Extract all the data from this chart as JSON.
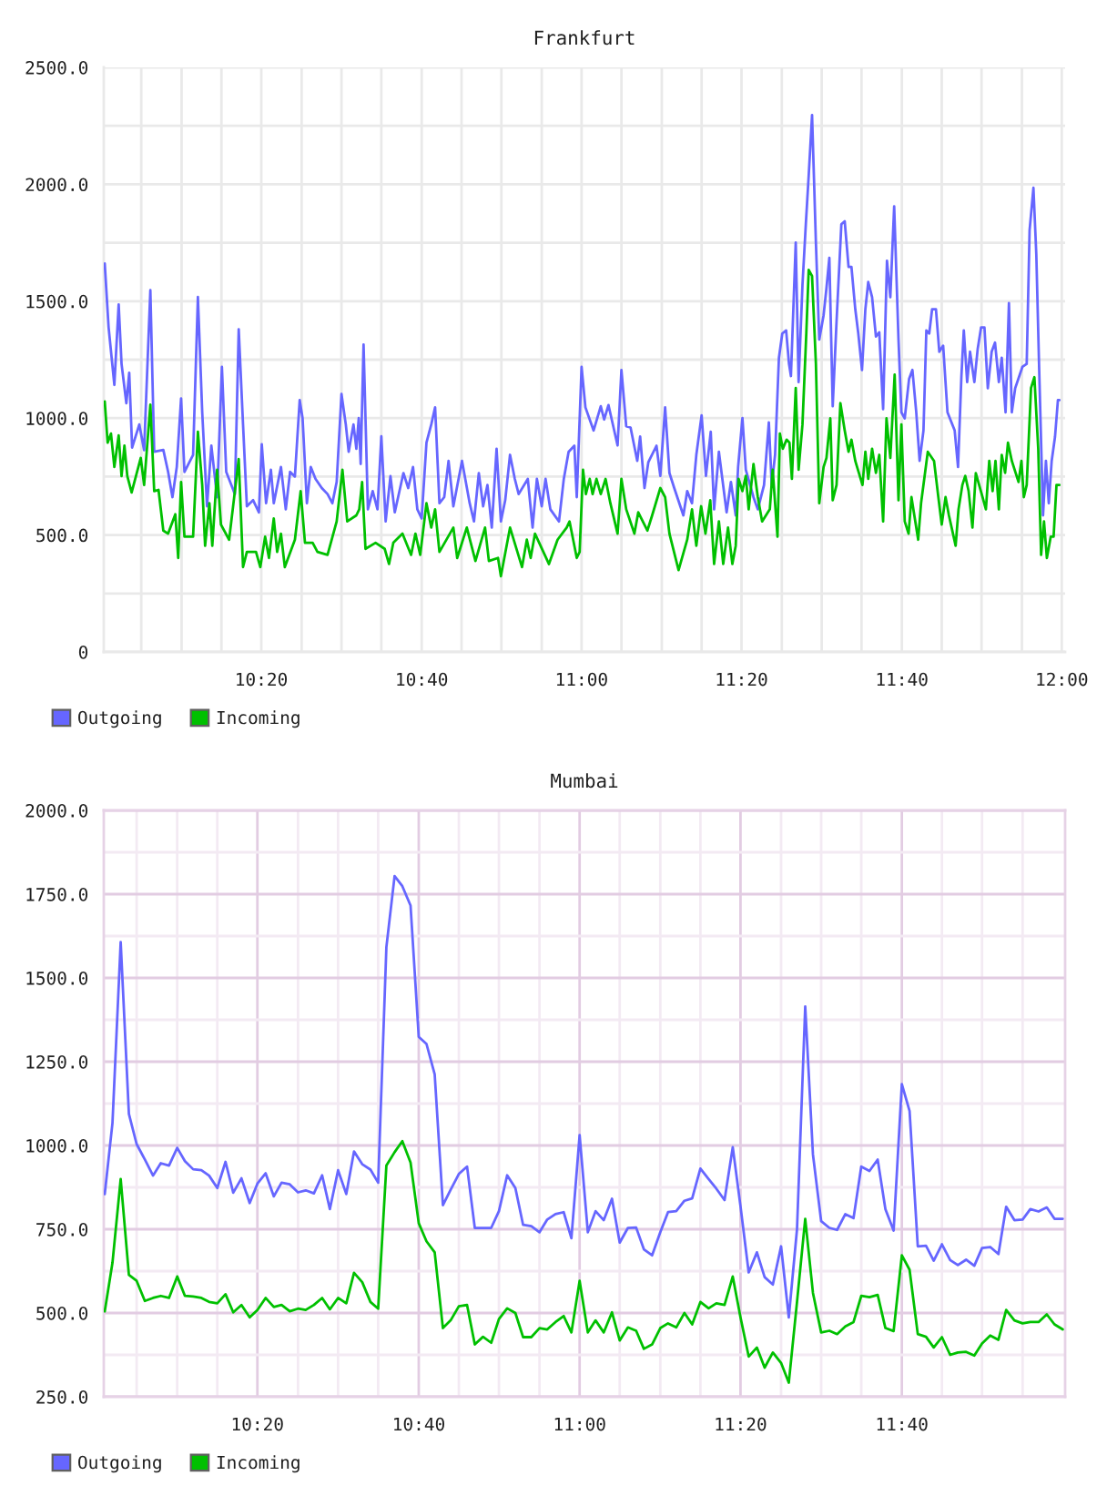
{
  "chart_data": [
    {
      "type": "line",
      "title": "Frankfurt",
      "xlim": [
        10.005,
        12.007
      ],
      "ylim": [
        0,
        2500
      ],
      "xticks": [
        {
          "value": 10.083,
          "label": null
        },
        {
          "value": 10.167,
          "label": null
        },
        {
          "value": 10.25,
          "label": null
        },
        {
          "value": 10.333,
          "label": "10:20"
        },
        {
          "value": 10.417,
          "label": null
        },
        {
          "value": 10.5,
          "label": null
        },
        {
          "value": 10.583,
          "label": null
        },
        {
          "value": 10.667,
          "label": "10:40"
        },
        {
          "value": 10.75,
          "label": null
        },
        {
          "value": 10.833,
          "label": null
        },
        {
          "value": 10.917,
          "label": null
        },
        {
          "value": 11.0,
          "label": "11:00"
        },
        {
          "value": 11.083,
          "label": null
        },
        {
          "value": 11.167,
          "label": null
        },
        {
          "value": 11.25,
          "label": null
        },
        {
          "value": 11.333,
          "label": "11:20"
        },
        {
          "value": 11.417,
          "label": null
        },
        {
          "value": 11.5,
          "label": null
        },
        {
          "value": 11.583,
          "label": null
        },
        {
          "value": 11.667,
          "label": "11:40"
        },
        {
          "value": 11.75,
          "label": null
        },
        {
          "value": 11.833,
          "label": null
        },
        {
          "value": 11.917,
          "label": null
        },
        {
          "value": 12.0,
          "label": "12:00"
        }
      ],
      "yticks": [
        0,
        {
          "value": 250,
          "label": null
        },
        {
          "value": 500,
          "label": "500.0"
        },
        {
          "value": 750,
          "label": null
        },
        {
          "value": 1000,
          "label": "1000.0"
        },
        {
          "value": 1250,
          "label": null
        },
        {
          "value": 1500,
          "label": "1500.0"
        },
        {
          "value": 1750,
          "label": null
        },
        {
          "value": 2000,
          "label": "2000.0"
        },
        {
          "value": 2250,
          "label": null
        },
        {
          "value": 2500,
          "label": "2500.0"
        }
      ],
      "grid": true,
      "legend": "bottom left",
      "series": [
        {
          "name": "Outgoing",
          "color": "#6666ff",
          "x": [
            10.007,
            10.015,
            10.027,
            10.036,
            10.042,
            10.052,
            10.058,
            10.064,
            10.079,
            10.089,
            10.102,
            10.11,
            10.129,
            10.139,
            10.148,
            10.157,
            10.166,
            10.173,
            10.191,
            10.201,
            10.21,
            10.22,
            10.229,
            10.241,
            10.251,
            10.26,
            10.278,
            10.286,
            10.295,
            10.303,
            10.316,
            10.328,
            10.334,
            10.343,
            10.353,
            10.359,
            10.374,
            10.384,
            10.393,
            10.403,
            10.413,
            10.419,
            10.428,
            10.436,
            10.446,
            10.459,
            10.471,
            10.481,
            10.49,
            10.5,
            10.509,
            10.515,
            10.525,
            10.531,
            10.536,
            10.54,
            10.546,
            10.555,
            10.565,
            10.575,
            10.583,
            10.592,
            10.602,
            10.611,
            10.629,
            10.639,
            10.649,
            10.658,
            10.667,
            10.677,
            10.687,
            10.695,
            10.704,
            10.714,
            10.723,
            10.733,
            10.751,
            10.767,
            10.776,
            10.786,
            10.795,
            10.804,
            10.813,
            10.823,
            10.832,
            10.841,
            10.851,
            10.861,
            10.869,
            10.888,
            10.898,
            10.907,
            10.917,
            10.925,
            10.935,
            10.953,
            10.963,
            10.973,
            10.985,
            10.99,
            11.0,
            11.008,
            11.025,
            11.04,
            11.047,
            11.056,
            11.075,
            11.083,
            11.093,
            11.102,
            11.116,
            11.122,
            11.131,
            11.139,
            11.156,
            11.164,
            11.174,
            11.183,
            11.193,
            11.212,
            11.22,
            11.23,
            11.239,
            11.25,
            11.259,
            11.269,
            11.276,
            11.286,
            11.302,
            11.311,
            11.321,
            11.326,
            11.335,
            11.342,
            11.358,
            11.367,
            11.38,
            11.39,
            11.396,
            11.403,
            11.411,
            11.418,
            11.426,
            11.432,
            11.436,
            11.446,
            11.452,
            11.46,
            11.467,
            11.473,
            11.48,
            11.488,
            11.495,
            11.504,
            11.51,
            11.516,
            11.523,
            11.531,
            11.541,
            11.548,
            11.556,
            11.562,
            11.57,
            11.576,
            11.584,
            11.591,
            11.597,
            11.605,
            11.613,
            11.62,
            11.628,
            11.636,
            11.643,
            11.651,
            11.66,
            11.666,
            11.673,
            11.682,
            11.689,
            11.697,
            11.704,
            11.712,
            11.718,
            11.724,
            11.73,
            11.738,
            11.745,
            11.753,
            11.762,
            11.777,
            11.784,
            11.791,
            11.796,
            11.803,
            11.809,
            11.818,
            11.825,
            11.832,
            11.839,
            11.846,
            11.854,
            11.861,
            11.869,
            11.875,
            11.883,
            11.89,
            11.896,
            11.903,
            11.918,
            11.927,
            11.933,
            11.941,
            11.947,
            11.953,
            11.961,
            11.967,
            11.973,
            11.979,
            11.986,
            11.992,
            11.995
          ],
          "values": [
            1661,
            1389,
            1142,
            1486,
            1232,
            1064,
            1194,
            874,
            973,
            863,
            1547,
            856,
            864,
            770,
            662,
            791,
            1084,
            770,
            843,
            1518,
            1025,
            623,
            882,
            662,
            1219,
            770,
            675,
            1380,
            973,
            623,
            649,
            597,
            888,
            636,
            779,
            636,
            791,
            610,
            770,
            750,
            1077,
            1000,
            636,
            791,
            740,
            701,
            675,
            636,
            727,
            1103,
            973,
            856,
            973,
            869,
            1000,
            804,
            1315,
            610,
            688,
            610,
            922,
            558,
            752,
            597,
            765,
            701,
            791,
            610,
            571,
            895,
            973,
            1046,
            636,
            662,
            817,
            623,
            817,
            636,
            558,
            765,
            623,
            714,
            532,
            869,
            558,
            649,
            843,
            740,
            675,
            740,
            532,
            740,
            623,
            740,
            610,
            558,
            740,
            856,
            882,
            662,
            1219,
            1046,
            947,
            1051,
            994,
            1056,
            883,
            1206,
            965,
            960,
            817,
            921,
            701,
            811,
            882,
            753,
            1046,
            765,
            701,
            584,
            688,
            636,
            843,
            1012,
            753,
            942,
            610,
            856,
            597,
            727,
            584,
            791,
            1000,
            779,
            662,
            610,
            714,
            982,
            714,
            843,
            1258,
            1362,
            1375,
            1232,
            1180,
            1751,
            1154,
            1569,
            1829,
            2037,
            2296,
            1751,
            1336,
            1440,
            1556,
            1686,
            1051,
            1414,
            1829,
            1842,
            1647,
            1647,
            1466,
            1367,
            1206,
            1466,
            1582,
            1517,
            1349,
            1367,
            1038,
            1673,
            1517,
            1906,
            1336,
            1025,
            999,
            1167,
            1206,
            1025,
            817,
            947,
            1375,
            1362,
            1466,
            1466,
            1284,
            1310,
            1025,
            947,
            791,
            1180,
            1375,
            1154,
            1284,
            1154,
            1297,
            1388,
            1388,
            1128,
            1284,
            1323,
            1154,
            1258,
            1025,
            1492,
            1025,
            1128,
            1219,
            1232,
            1803,
            1985,
            1700,
            1206,
            584,
            817,
            636,
            817,
            921,
            1077,
            1077
          ]
        },
        {
          "name": "Incoming",
          "color": "#00c000",
          "x": [
            10.007,
            10.013,
            10.02,
            10.027,
            10.036,
            10.042,
            10.048,
            10.054,
            10.063,
            10.082,
            10.089,
            10.102,
            10.11,
            10.119,
            10.129,
            10.139,
            10.154,
            10.16,
            10.166,
            10.173,
            10.191,
            10.201,
            10.21,
            10.216,
            10.225,
            10.231,
            10.241,
            10.249,
            10.266,
            10.286,
            10.295,
            10.303,
            10.322,
            10.331,
            10.341,
            10.349,
            10.359,
            10.366,
            10.374,
            10.382,
            10.403,
            10.415,
            10.424,
            10.44,
            10.45,
            10.471,
            10.49,
            10.502,
            10.512,
            10.531,
            10.537,
            10.543,
            10.55,
            10.571,
            10.59,
            10.599,
            10.608,
            10.627,
            10.645,
            10.654,
            10.664,
            10.677,
            10.687,
            10.695,
            10.704,
            10.733,
            10.741,
            10.761,
            10.779,
            10.799,
            10.807,
            10.826,
            10.832,
            10.851,
            10.876,
            10.886,
            10.894,
            10.903,
            10.932,
            10.95,
            10.969,
            10.975,
            10.99,
            10.996,
            11.003,
            11.009,
            11.017,
            11.023,
            11.031,
            11.04,
            11.05,
            11.06,
            11.075,
            11.083,
            11.093,
            11.11,
            11.118,
            11.137,
            11.147,
            11.164,
            11.174,
            11.183,
            11.202,
            11.22,
            11.23,
            11.239,
            11.249,
            11.258,
            11.268,
            11.276,
            11.286,
            11.295,
            11.305,
            11.314,
            11.321,
            11.327,
            11.335,
            11.342,
            11.348,
            11.358,
            11.367,
            11.376,
            11.392,
            11.398,
            11.408,
            11.413,
            11.419,
            11.427,
            11.433,
            11.438,
            11.446,
            11.452,
            11.46,
            11.468,
            11.473,
            11.48,
            11.488,
            11.495,
            11.504,
            11.51,
            11.518,
            11.523,
            11.531,
            11.539,
            11.548,
            11.556,
            11.562,
            11.57,
            11.585,
            11.591,
            11.597,
            11.605,
            11.613,
            11.62,
            11.628,
            11.635,
            11.643,
            11.652,
            11.66,
            11.666,
            11.673,
            11.681,
            11.687,
            11.701,
            11.707,
            11.721,
            11.734,
            11.743,
            11.75,
            11.758,
            11.765,
            11.779,
            11.785,
            11.793,
            11.799,
            11.806,
            11.814,
            11.821,
            11.835,
            11.842,
            11.849,
            11.856,
            11.862,
            11.869,
            11.875,
            11.882,
            11.888,
            11.896,
            11.91,
            11.916,
            11.921,
            11.927,
            11.936,
            11.943,
            11.951,
            11.957,
            11.963,
            11.969,
            11.977,
            11.983,
            11.989,
            11.995
          ],
          "values": [
            1071,
            895,
            934,
            791,
            926,
            752,
            882,
            752,
            682,
            830,
            714,
            1058,
            688,
            693,
            519,
            506,
            589,
            402,
            727,
            493,
            493,
            942,
            714,
            454,
            636,
            454,
            779,
            545,
            480,
            825,
            363,
            428,
            428,
            363,
            493,
            402,
            571,
            428,
            506,
            363,
            480,
            688,
            467,
            467,
            428,
            415,
            558,
            779,
            558,
            584,
            610,
            727,
            441,
            467,
            441,
            376,
            467,
            506,
            415,
            506,
            415,
            636,
            532,
            610,
            428,
            532,
            402,
            532,
            389,
            532,
            389,
            402,
            324,
            532,
            363,
            480,
            402,
            506,
            376,
            480,
            532,
            558,
            402,
            428,
            779,
            675,
            740,
            675,
            740,
            675,
            740,
            636,
            506,
            740,
            610,
            506,
            597,
            519,
            584,
            701,
            662,
            506,
            350,
            480,
            610,
            454,
            623,
            506,
            649,
            376,
            558,
            376,
            532,
            376,
            454,
            740,
            688,
            753,
            610,
            804,
            662,
            558,
            610,
            779,
            493,
            934,
            869,
            908,
            895,
            740,
            1129,
            779,
            973,
            1362,
            1634,
            1608,
            1232,
            636,
            791,
            830,
            999,
            649,
            714,
            1064,
            947,
            856,
            908,
            817,
            714,
            856,
            740,
            869,
            766,
            843,
            558,
            999,
            830,
            1186,
            649,
            973,
            558,
            506,
            662,
            480,
            636,
            856,
            817,
            662,
            545,
            662,
            584,
            454,
            610,
            714,
            753,
            688,
            532,
            765,
            662,
            610,
            817,
            688,
            817,
            610,
            843,
            766,
            895,
            817,
            727,
            817,
            662,
            714,
            1129,
            1175,
            869,
            415,
            558,
            402,
            493,
            493,
            714,
            714
          ]
        }
      ]
    },
    {
      "type": "line",
      "title": "Mumbai",
      "xlim": [
        10.015,
        12.005
      ],
      "ylim": [
        250,
        2000
      ],
      "xticks": [
        {
          "value": 10.083,
          "label": null
        },
        {
          "value": 10.167,
          "label": null
        },
        {
          "value": 10.25,
          "label": null
        },
        {
          "value": 10.333,
          "label": "10:20"
        },
        {
          "value": 10.417,
          "label": null
        },
        {
          "value": 10.5,
          "label": null
        },
        {
          "value": 10.583,
          "label": null
        },
        {
          "value": 10.667,
          "label": "10:40"
        },
        {
          "value": 10.75,
          "label": null
        },
        {
          "value": 10.833,
          "label": null
        },
        {
          "value": 10.917,
          "label": null
        },
        {
          "value": 11.0,
          "label": "11:00"
        },
        {
          "value": 11.083,
          "label": null
        },
        {
          "value": 11.167,
          "label": null
        },
        {
          "value": 11.25,
          "label": null
        },
        {
          "value": 11.333,
          "label": "11:20"
        },
        {
          "value": 11.417,
          "label": null
        },
        {
          "value": 11.5,
          "label": null
        },
        {
          "value": 11.583,
          "label": null
        },
        {
          "value": 11.667,
          "label": "11:40"
        },
        {
          "value": 11.75,
          "label": null
        },
        {
          "value": 11.833,
          "label": null
        },
        {
          "value": 11.917,
          "label": null
        }
      ],
      "yticks": [
        {
          "value": 250,
          "label": "250.0"
        },
        {
          "value": 375,
          "label": null
        },
        {
          "value": 500,
          "label": "500.0"
        },
        {
          "value": 625,
          "label": null
        },
        {
          "value": 750,
          "label": "750.0"
        },
        {
          "value": 875,
          "label": null
        },
        {
          "value": 1000,
          "label": "1000.0"
        },
        {
          "value": 1125,
          "label": null
        },
        {
          "value": 1250,
          "label": "1250.0"
        },
        {
          "value": 1375,
          "label": null
        },
        {
          "value": 1500,
          "label": "1500.0"
        },
        {
          "value": 1625,
          "label": null
        },
        {
          "value": 1750,
          "label": "1750.0"
        },
        {
          "value": 1875,
          "label": null
        },
        {
          "value": 2000,
          "label": "2000.0"
        }
      ],
      "grid": true,
      "legend": "bottom left",
      "x": [
        10.017,
        10.033,
        10.05,
        10.067,
        10.083,
        10.1,
        10.117,
        10.133,
        10.15,
        10.167,
        10.183,
        10.2,
        10.217,
        10.233,
        10.25,
        10.267,
        10.283,
        10.3,
        10.317,
        10.333,
        10.35,
        10.367,
        10.383,
        10.4,
        10.417,
        10.433,
        10.45,
        10.467,
        10.483,
        10.5,
        10.517,
        10.533,
        10.55,
        10.567,
        10.583,
        10.6,
        10.617,
        10.633,
        10.65,
        10.667,
        10.683,
        10.7,
        10.717,
        10.733,
        10.75,
        10.767,
        10.783,
        10.8,
        10.817,
        10.833,
        10.85,
        10.867,
        10.883,
        10.9,
        10.917,
        10.933,
        10.95,
        10.967,
        10.983,
        11.0,
        11.017,
        11.033,
        11.05,
        11.067,
        11.083,
        11.1,
        11.117,
        11.133,
        11.15,
        11.167,
        11.183,
        11.2,
        11.217,
        11.233,
        11.25,
        11.267,
        11.283,
        11.3,
        11.317,
        11.333,
        11.35,
        11.367,
        11.383,
        11.4,
        11.417,
        11.433,
        11.45,
        11.467,
        11.483,
        11.5,
        11.517,
        11.533,
        11.55,
        11.567,
        11.583,
        11.6,
        11.617,
        11.633,
        11.65,
        11.667,
        11.683,
        11.7,
        11.717,
        11.733,
        11.75,
        11.767,
        11.783,
        11.8,
        11.817,
        11.833,
        11.85,
        11.867,
        11.883,
        11.9,
        11.917,
        11.933,
        11.95,
        11.967,
        11.983,
        12.0
      ],
      "series": [
        {
          "name": "Outgoing",
          "color": "#6666ff",
          "values": [
            855,
            1067,
            1607,
            1094,
            1004,
            958,
            910,
            947,
            940,
            993,
            953,
            929,
            926,
            910,
            873,
            951,
            859,
            902,
            828,
            886,
            917,
            848,
            889,
            884,
            860,
            866,
            857,
            911,
            810,
            926,
            855,
            982,
            944,
            928,
            889,
            1592,
            1804,
            1774,
            1716,
            1324,
            1303,
            1212,
            822,
            868,
            915,
            937,
            754,
            754,
            754,
            804,
            911,
            873,
            763,
            759,
            741,
            779,
            795,
            801,
            723,
            1031,
            741,
            804,
            777,
            841,
            710,
            754,
            755,
            690,
            672,
            741,
            801,
            804,
            835,
            842,
            931,
            900,
            871,
            837,
            995,
            819,
            621,
            681,
            607,
            585,
            699,
            487,
            750,
            1415,
            973,
            774,
            754,
            748,
            795,
            783,
            937,
            924,
            958,
            810,
            746,
            1183,
            1103,
            699,
            701,
            656,
            705,
            658,
            643,
            659,
            641,
            694,
            697,
            676,
            817,
            777,
            779,
            810,
            803,
            815,
            781,
            781
          ]
        },
        {
          "name": "Incoming",
          "color": "#00c000",
          "values": [
            505,
            650,
            900,
            614,
            596,
            536,
            545,
            551,
            545,
            609,
            551,
            549,
            545,
            533,
            529,
            556,
            502,
            524,
            487,
            509,
            545,
            518,
            524,
            505,
            513,
            509,
            524,
            545,
            511,
            545,
            529,
            620,
            592,
            533,
            513,
            940,
            980,
            1013,
            949,
            768,
            714,
            681,
            455,
            478,
            520,
            524,
            406,
            429,
            411,
            482,
            514,
            500,
            428,
            428,
            455,
            451,
            473,
            491,
            442,
            596,
            442,
            478,
            442,
            502,
            418,
            457,
            447,
            393,
            406,
            455,
            469,
            457,
            500,
            466,
            533,
            514,
            529,
            524,
            609,
            487,
            370,
            397,
            337,
            382,
            351,
            292,
            533,
            781,
            560,
            442,
            447,
            437,
            460,
            473,
            551,
            547,
            554,
            455,
            446,
            672,
            629,
            437,
            429,
            397,
            428,
            375,
            382,
            384,
            373,
            409,
            433,
            420,
            509,
            478,
            469,
            473,
            473,
            496,
            466,
            451
          ]
        }
      ]
    }
  ]
}
